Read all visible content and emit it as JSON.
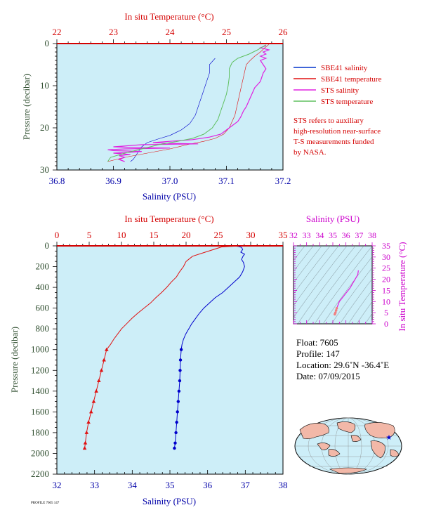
{
  "top_panel": {
    "title": "In situ Temperature (°C)",
    "y_label": "Pressure (decibar)",
    "x_label": "Salinity (PSU)",
    "temp_ticks": [
      "22",
      "23",
      "24",
      "25",
      "26"
    ],
    "sal_ticks": [
      "36.8",
      "36.9",
      "37.0",
      "37.1",
      "37.2"
    ],
    "pres_ticks": [
      "0",
      "10",
      "20",
      "30"
    ],
    "legend": [
      {
        "label": "SBE41 salinity",
        "color": "#0033cc"
      },
      {
        "label": "SBE41 temperature",
        "color": "#e01010"
      },
      {
        "label": "STS salinity",
        "color": "#e020e0"
      },
      {
        "label": "STS temperature",
        "color": "#60c060"
      }
    ],
    "note": [
      "STS refers to auxiliary",
      "high-resolution near-surface",
      "T-S measurements funded",
      "by NASA."
    ]
  },
  "bottom_panel": {
    "title": "In situ Temperature (°C)",
    "y_label": "Pressure (decibar)",
    "x_label": "Salinity (PSU)",
    "temp_ticks": [
      "0",
      "5",
      "10",
      "15",
      "20",
      "25",
      "30",
      "35"
    ],
    "sal_ticks": [
      "32",
      "33",
      "34",
      "35",
      "36",
      "37",
      "38"
    ],
    "pres_ticks": [
      "0",
      "200",
      "400",
      "600",
      "800",
      "1000",
      "1200",
      "1400",
      "1600",
      "1800",
      "2000",
      "2200"
    ]
  },
  "ts_panel": {
    "title": "Salinity (PSU)",
    "y_label": "In situ Temperature (°C)",
    "sal_ticks": [
      "32",
      "33",
      "34",
      "35",
      "36",
      "37",
      "38"
    ],
    "temp_ticks": [
      "0",
      "5",
      "10",
      "15",
      "20",
      "25",
      "30",
      "35"
    ]
  },
  "info": {
    "float": "Float:  7605",
    "profile": "Profile:  147",
    "location": "Location:  29.6˚N  -36.4˚E",
    "date": "Date:  07/09/2015"
  },
  "footer": "PROFILE 7605 147",
  "colors": {
    "panel_bg": "#cdeef8",
    "salinity": "#0000cc",
    "temperature": "#e01010",
    "sts_salinity": "#e020e0",
    "sts_temperature": "#60c060",
    "temp_axis_text": "#d40000",
    "sal_axis_text": "#0000a8",
    "pres_axis_text": "#2e4d2e",
    "ts_axis_text": "#cc00cc"
  },
  "chart_data": [
    {
      "type": "line",
      "title": "In situ Temperature (°C)",
      "xlabel": "Salinity (PSU)",
      "ylabel": "Pressure (decibar)",
      "xlim_salinity": [
        36.8,
        37.2
      ],
      "xlim_temperature": [
        22,
        26
      ],
      "ylim": [
        30,
        0
      ],
      "series": [
        {
          "name": "SBE41 salinity",
          "axis": "salinity",
          "points": [
            [
              37.08,
              3.5
            ],
            [
              37.07,
              5
            ],
            [
              37.07,
              7
            ],
            [
              37.065,
              9
            ],
            [
              37.06,
              11
            ],
            [
              37.055,
              13
            ],
            [
              37.05,
              15
            ],
            [
              37.045,
              17
            ],
            [
              37.035,
              19
            ],
            [
              37.02,
              20.5
            ],
            [
              37.0,
              21.8
            ],
            [
              36.98,
              22.6
            ],
            [
              36.96,
              23.5
            ],
            [
              36.95,
              24.5
            ],
            [
              36.945,
              25.5
            ],
            [
              36.94,
              26.5
            ],
            [
              36.935,
              27.5
            ],
            [
              36.93,
              28
            ]
          ]
        },
        {
          "name": "SBE41 temperature",
          "axis": "temperature",
          "points": [
            [
              25.75,
              0.2
            ],
            [
              25.68,
              1
            ],
            [
              25.6,
              2
            ],
            [
              25.5,
              3
            ],
            [
              25.42,
              4
            ],
            [
              25.35,
              5
            ],
            [
              25.3,
              8
            ],
            [
              25.25,
              11
            ],
            [
              25.2,
              14
            ],
            [
              25.15,
              17
            ],
            [
              25.05,
              20
            ],
            [
              24.95,
              21.5
            ],
            [
              24.8,
              22.5
            ],
            [
              24.6,
              23.2
            ],
            [
              24.3,
              24
            ],
            [
              24.0,
              25
            ],
            [
              23.6,
              26
            ],
            [
              23.2,
              27
            ],
            [
              22.9,
              28
            ]
          ]
        },
        {
          "name": "STS salinity",
          "axis": "salinity",
          "points": [
            [
              37.17,
              0.5
            ],
            [
              37.16,
              1
            ],
            [
              37.175,
              1.5
            ],
            [
              37.165,
              2
            ],
            [
              37.17,
              2.5
            ],
            [
              37.16,
              3
            ],
            [
              37.17,
              3.5
            ],
            [
              37.16,
              4
            ],
            [
              37.165,
              5
            ],
            [
              37.17,
              6
            ],
            [
              37.165,
              7
            ],
            [
              37.16,
              9
            ],
            [
              37.15,
              10.5
            ],
            [
              37.145,
              12
            ],
            [
              37.14,
              13.5
            ],
            [
              37.135,
              15
            ],
            [
              37.13,
              16
            ],
            [
              37.125,
              17.5
            ],
            [
              37.12,
              18.5
            ],
            [
              37.11,
              19.5
            ],
            [
              37.1,
              20.5
            ],
            [
              37.09,
              21.5
            ],
            [
              37.07,
              22.2
            ],
            [
              37.04,
              22.8
            ],
            [
              37.0,
              23.2
            ],
            [
              36.97,
              23.5
            ],
            [
              37.0,
              23.7
            ],
            [
              37.05,
              23.8
            ],
            [
              36.95,
              24
            ],
            [
              36.92,
              24.3
            ],
            [
              36.9,
              24.5
            ],
            [
              36.95,
              24.7
            ],
            [
              37.0,
              24.8
            ],
            [
              36.92,
              25
            ],
            [
              36.89,
              25.2
            ],
            [
              36.9,
              25.4
            ],
            [
              36.95,
              25.6
            ],
            [
              36.93,
              25.8
            ],
            [
              36.9,
              26
            ],
            [
              36.93,
              26.3
            ],
            [
              36.91,
              26.6
            ],
            [
              36.92,
              27
            ],
            [
              36.91,
              27.5
            ],
            [
              36.92,
              28
            ]
          ]
        },
        {
          "name": "STS temperature",
          "axis": "temperature",
          "points": [
            [
              25.7,
              0.3
            ],
            [
              25.55,
              1.5
            ],
            [
              25.4,
              2.5
            ],
            [
              25.2,
              3.5
            ],
            [
              25.1,
              4.5
            ],
            [
              25.05,
              6
            ],
            [
              25.05,
              8
            ],
            [
              25.03,
              10
            ],
            [
              25.0,
              12
            ],
            [
              24.95,
              14
            ],
            [
              24.9,
              16
            ],
            [
              24.85,
              18
            ],
            [
              24.75,
              20
            ],
            [
              24.6,
              21.5
            ],
            [
              24.4,
              22.5
            ],
            [
              24.1,
              23.3
            ],
            [
              23.8,
              24
            ],
            [
              23.5,
              25
            ],
            [
              23.2,
              26
            ],
            [
              22.95,
              27
            ],
            [
              22.9,
              28
            ]
          ]
        }
      ]
    },
    {
      "type": "line",
      "title": "In situ Temperature (°C)",
      "xlabel": "Salinity (PSU)",
      "ylabel": "Pressure (decibar)",
      "xlim_salinity": [
        32,
        38
      ],
      "xlim_temperature": [
        0,
        35
      ],
      "ylim": [
        2200,
        0
      ],
      "series": [
        {
          "axis": "salinity",
          "points": [
            [
              36.7,
              0
            ],
            [
              36.8,
              5
            ],
            [
              36.9,
              15
            ],
            [
              36.93,
              35
            ],
            [
              36.88,
              60
            ],
            [
              36.98,
              80
            ],
            [
              36.94,
              100
            ],
            [
              36.9,
              130
            ],
            [
              36.95,
              160
            ],
            [
              36.98,
              200
            ],
            [
              36.93,
              250
            ],
            [
              36.85,
              300
            ],
            [
              36.7,
              350
            ],
            [
              36.55,
              400
            ],
            [
              36.4,
              450
            ],
            [
              36.2,
              500
            ],
            [
              36.05,
              550
            ],
            [
              35.9,
              600
            ],
            [
              35.78,
              650
            ],
            [
              35.68,
              700
            ],
            [
              35.58,
              750
            ],
            [
              35.5,
              800
            ],
            [
              35.42,
              850
            ],
            [
              35.36,
              900
            ],
            [
              35.32,
              950
            ],
            [
              35.3,
              1000
            ],
            [
              35.28,
              1100
            ],
            [
              35.27,
              1200
            ],
            [
              35.26,
              1300
            ],
            [
              35.24,
              1400
            ],
            [
              35.22,
              1500
            ],
            [
              35.2,
              1600
            ],
            [
              35.18,
              1700
            ],
            [
              35.16,
              1800
            ],
            [
              35.14,
              1900
            ],
            [
              35.12,
              1950
            ]
          ]
        },
        {
          "axis": "temperature",
          "points": [
            [
              28.4,
              0
            ],
            [
              27.0,
              5
            ],
            [
              25.5,
              10
            ],
            [
              25.0,
              20
            ],
            [
              23.0,
              60
            ],
            [
              21.0,
              100
            ],
            [
              20.0,
              150
            ],
            [
              19.6,
              200
            ],
            [
              19.0,
              250
            ],
            [
              18.5,
              300
            ],
            [
              17.7,
              350
            ],
            [
              17.0,
              400
            ],
            [
              16.2,
              450
            ],
            [
              15.3,
              500
            ],
            [
              14.5,
              550
            ],
            [
              13.5,
              600
            ],
            [
              12.5,
              650
            ],
            [
              11.6,
              700
            ],
            [
              10.8,
              750
            ],
            [
              10.0,
              800
            ],
            [
              9.4,
              850
            ],
            [
              8.8,
              900
            ],
            [
              8.3,
              950
            ],
            [
              7.7,
              1000
            ],
            [
              7.3,
              1100
            ],
            [
              6.9,
              1200
            ],
            [
              6.5,
              1300
            ],
            [
              6.1,
              1400
            ],
            [
              5.7,
              1500
            ],
            [
              5.3,
              1600
            ],
            [
              4.9,
              1700
            ],
            [
              4.6,
              1800
            ],
            [
              4.4,
              1900
            ],
            [
              4.3,
              1950
            ]
          ]
        }
      ]
    },
    {
      "type": "scatter",
      "title": "Salinity (PSU)",
      "ylabel": "In situ Temperature (°C)",
      "xlim": [
        32,
        38
      ],
      "ylim": [
        0,
        35
      ],
      "series": [
        {
          "points": [
            [
              36.95,
              24
            ],
            [
              36.9,
              22
            ],
            [
              36.7,
              20
            ],
            [
              36.5,
              18
            ],
            [
              36.3,
              16
            ],
            [
              36.1,
              14.5
            ],
            [
              35.9,
              13
            ],
            [
              35.7,
              11.5
            ],
            [
              35.5,
              10
            ],
            [
              35.4,
              8.5
            ],
            [
              35.3,
              7
            ],
            [
              35.25,
              6
            ],
            [
              35.2,
              5
            ],
            [
              35.15,
              4.3
            ]
          ]
        }
      ]
    }
  ]
}
